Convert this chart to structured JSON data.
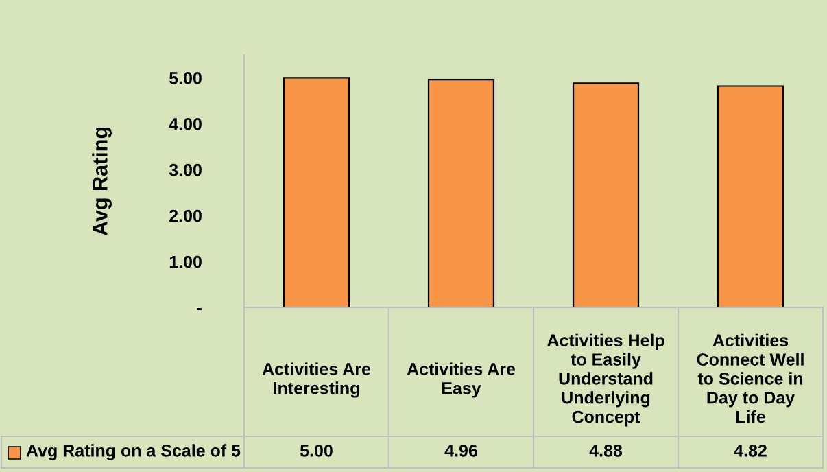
{
  "chart_data": {
    "type": "bar",
    "ylabel": "Avg Rating",
    "categories": [
      "Activities Are Interesting",
      "Activities Are Easy",
      "Activities Help to Easily Understand Underlying Concept",
      "Activities Connect Well to Science in Day to Day Life"
    ],
    "series": [
      {
        "name": "Avg Rating on a Scale of 5",
        "color": "#f79646",
        "values": [
          5.0,
          4.96,
          4.88,
          4.82
        ],
        "value_labels": [
          "5.00",
          "4.96",
          "4.88",
          "4.82"
        ]
      }
    ],
    "ylim": [
      0,
      5.5
    ],
    "yticks": [
      {
        "value": 0,
        "label": "-"
      },
      {
        "value": 1,
        "label": "1.00"
      },
      {
        "value": 2,
        "label": "2.00"
      },
      {
        "value": 3,
        "label": "3.00"
      },
      {
        "value": 4,
        "label": "4.00"
      },
      {
        "value": 5,
        "label": "5.00"
      }
    ],
    "grid": false
  }
}
